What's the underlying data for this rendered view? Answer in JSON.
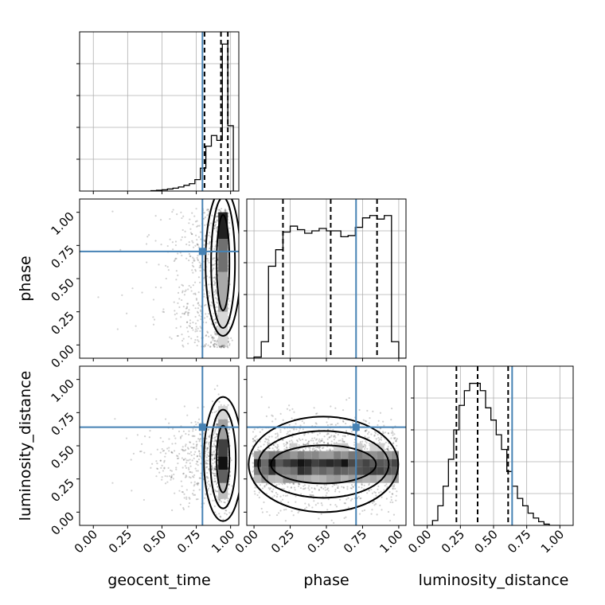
{
  "chart_data": {
    "type": "corner",
    "parameters": [
      "geocent_time",
      "phase",
      "luminosity_distance"
    ],
    "axis_labels": {
      "x": [
        "geocent_time",
        "phase",
        "luminosity_distance"
      ],
      "y": [
        "phase",
        "luminosity_distance"
      ]
    },
    "tick_values": [
      0.0,
      0.25,
      0.5,
      0.75,
      1.0
    ],
    "tick_labels": [
      "0.00",
      "0.25",
      "0.50",
      "0.75",
      "1.00"
    ],
    "truths": {
      "geocent_time": 0.795,
      "phase": 0.705,
      "luminosity_distance": 0.64
    },
    "truth_color": "#4682b4",
    "quantiles": {
      "geocent_time": [
        0.81,
        0.93,
        0.98
      ],
      "phase": [
        0.2,
        0.53,
        0.85
      ],
      "luminosity_distance": [
        0.22,
        0.38,
        0.61
      ]
    },
    "histograms": {
      "geocent_time": {
        "xlim": [
          -0.1,
          1.06
        ],
        "bin_edges": [
          0.42,
          0.46,
          0.5,
          0.54,
          0.58,
          0.62,
          0.66,
          0.7,
          0.74,
          0.78,
          0.82,
          0.86,
          0.9,
          0.94,
          0.98,
          1.02
        ],
        "counts": [
          0.5,
          1,
          1.5,
          2.5,
          3.5,
          5,
          7,
          9,
          14,
          28,
          55,
          68,
          62,
          180,
          80
        ]
      },
      "phase": {
        "xlim": [
          -0.05,
          1.05
        ],
        "bin_edges": [
          -0.05,
          0.0,
          0.05,
          0.1,
          0.15,
          0.2,
          0.25,
          0.3,
          0.35,
          0.4,
          0.45,
          0.5,
          0.55,
          0.6,
          0.65,
          0.7,
          0.75,
          0.8,
          0.85,
          0.9,
          0.95,
          1.0,
          1.05
        ],
        "counts": [
          0,
          1,
          14,
          78,
          92,
          107,
          112,
          109,
          106,
          108,
          110,
          108,
          108,
          103,
          104,
          111,
          119,
          121,
          118,
          121,
          14,
          0
        ]
      },
      "luminosity_distance": {
        "xlim": [
          -0.1,
          1.1
        ],
        "bin_edges": [
          0.0,
          0.04,
          0.08,
          0.12,
          0.16,
          0.2,
          0.24,
          0.28,
          0.32,
          0.36,
          0.4,
          0.44,
          0.48,
          0.52,
          0.56,
          0.6,
          0.64,
          0.68,
          0.72,
          0.76,
          0.8,
          0.84,
          0.88,
          0.92,
          0.96,
          1.0
        ],
        "counts": [
          0,
          2,
          8,
          16,
          27,
          39,
          49,
          55,
          58,
          58,
          55,
          48,
          43,
          37,
          31,
          22,
          16,
          11,
          8,
          5,
          3,
          1.5,
          0.5,
          0,
          0
        ]
      }
    },
    "joint_panels": [
      {
        "x": "geocent_time",
        "y": "phase",
        "xlim": [
          -0.1,
          1.06
        ],
        "ylim": [
          -0.1,
          1.1
        ],
        "peak": [
          0.94,
          0.62
        ]
      },
      {
        "x": "geocent_time",
        "y": "luminosity_distance",
        "xlim": [
          -0.1,
          1.06
        ],
        "ylim": [
          -0.1,
          1.1
        ],
        "peak": [
          0.94,
          0.4
        ]
      },
      {
        "x": "phase",
        "y": "luminosity_distance",
        "xlim": [
          -0.05,
          1.05
        ],
        "ylim": [
          -0.1,
          1.1
        ],
        "peak": [
          0.5,
          0.35
        ]
      }
    ],
    "grid": true
  }
}
